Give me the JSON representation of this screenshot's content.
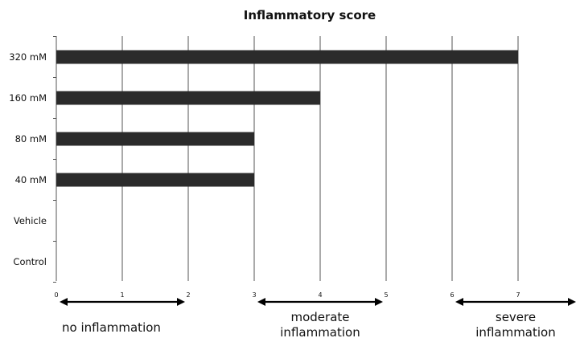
{
  "chart_data": {
    "type": "bar",
    "orientation": "horizontal",
    "title": "Inflammatory score",
    "categories": [
      "320 mM",
      "160 mM",
      "80 mM",
      "40 mM",
      "Vehicle",
      "Control"
    ],
    "values": [
      7,
      4,
      3,
      3,
      0,
      0
    ],
    "xlim": [
      0,
      8
    ],
    "xticks": [
      "0",
      "1",
      "2",
      "3",
      "4",
      "5",
      "6",
      "7"
    ],
    "xlabel": "",
    "ylabel": "",
    "grid": "vertical",
    "colors": {
      "bar": "#2b2b2b",
      "grid": "#555555"
    }
  },
  "scale_bands": [
    {
      "from": 0,
      "to": 2,
      "lines": [
        "no inflammation"
      ]
    },
    {
      "from": 3,
      "to": 5,
      "lines": [
        "moderate",
        "inflammation"
      ]
    },
    {
      "from": 6,
      "to": 8,
      "lines": [
        "severe",
        "inflammation"
      ]
    }
  ]
}
